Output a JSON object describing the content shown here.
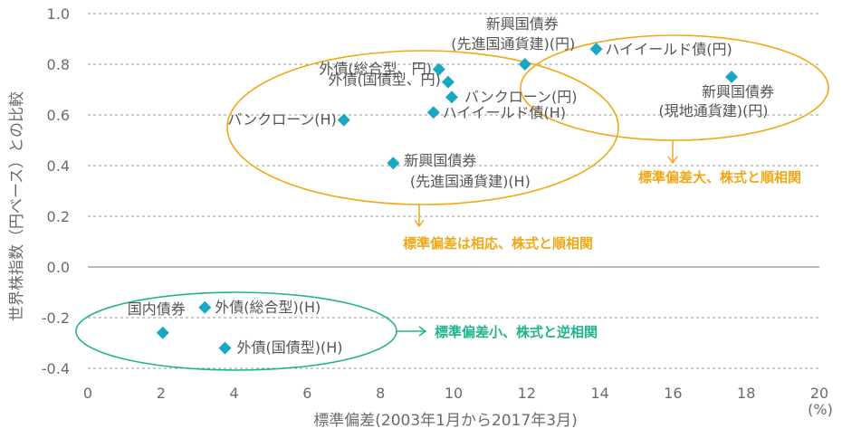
{
  "chart_data": {
    "type": "scatter",
    "xlabel": "標準偏差(2003年1月から2017年3月)",
    "ylabel": "世界株指数（円ベース）との比較",
    "x_unit": "(%)",
    "xlim": [
      0,
      20
    ],
    "ylim": [
      -0.4,
      1.0
    ],
    "x_ticks": [
      "0",
      "2",
      "4",
      "6",
      "8",
      "10",
      "12",
      "14",
      "16",
      "18",
      "20"
    ],
    "y_ticks": [
      "-0.4",
      "-0.2",
      "0.0",
      "0.2",
      "0.4",
      "0.6",
      "0.8",
      "1.0"
    ],
    "grid": true,
    "marker_color": "#1aa7c4",
    "points": [
      {
        "x": 9.6,
        "y": 0.78,
        "label": [
          "外債(総合型、円)"
        ]
      },
      {
        "x": 9.85,
        "y": 0.73,
        "label": [
          "外債(国債型、円)"
        ]
      },
      {
        "x": 9.95,
        "y": 0.67,
        "label": [
          "バンクローン(円)"
        ]
      },
      {
        "x": 9.45,
        "y": 0.61,
        "label": [
          "ハイイールド債(H)"
        ]
      },
      {
        "x": 7.0,
        "y": 0.58,
        "label": [
          "バンクローン(H)"
        ]
      },
      {
        "x": 8.35,
        "y": 0.41,
        "label": [
          "新興国債券",
          "(先進国通貨建)(H)"
        ]
      },
      {
        "x": 11.95,
        "y": 0.8,
        "label": [
          "新興国債券",
          "(先進国通貨建)(円)"
        ]
      },
      {
        "x": 13.9,
        "y": 0.86,
        "label": [
          "ハイイールド債(円)"
        ]
      },
      {
        "x": 17.6,
        "y": 0.75,
        "label": [
          "新興国債券",
          "(現地通貨建)(円)"
        ]
      },
      {
        "x": 2.05,
        "y": -0.26,
        "label": [
          "国内債券"
        ]
      },
      {
        "x": 3.2,
        "y": -0.16,
        "label": [
          "外債(総合型)(H)"
        ]
      },
      {
        "x": 3.75,
        "y": -0.32,
        "label": [
          "外債(国債型)(H)"
        ]
      }
    ],
    "annotations": [
      {
        "text": "標準偏差は相応、株式と順相関",
        "color": "#f0a818"
      },
      {
        "text": "標準偏差大、株式と順相関",
        "color": "#f0a818"
      },
      {
        "text": "標準偏差小、株式と逆相関",
        "color": "#22b48c"
      }
    ]
  }
}
